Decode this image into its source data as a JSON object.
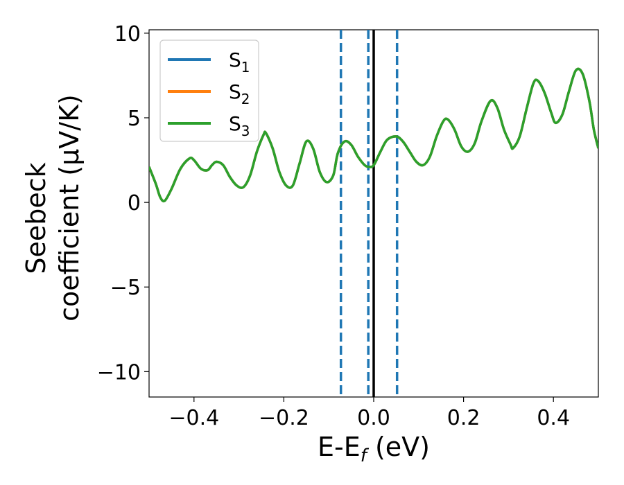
{
  "chart_data": {
    "type": "line",
    "xlabel": {
      "main": "E-E",
      "sub": "f",
      "tail": " (eV)"
    },
    "ylabel": {
      "line1": "Seebeck",
      "line2": "coefficient  (μV/K)"
    },
    "xlim": [
      -0.5,
      0.5
    ],
    "ylim": [
      -11.5,
      10.2
    ],
    "xticks": [
      -0.4,
      -0.2,
      0.0,
      0.2,
      0.4
    ],
    "xtick_labels": [
      "−0.4",
      "−0.2",
      "0.0",
      "0.2",
      "0.4"
    ],
    "yticks": [
      -10,
      -5,
      0,
      5,
      10
    ],
    "ytick_labels": [
      "−10",
      "−5",
      "0",
      "5",
      "10"
    ],
    "grid": false,
    "legend_position": "top-left",
    "series": [
      {
        "name": "S",
        "sub": "1",
        "color": "#1f77b4"
      },
      {
        "name": "S",
        "sub": "2",
        "color": "#ff7f0e"
      },
      {
        "name": "S",
        "sub": "3",
        "color": "#2ca02c"
      }
    ],
    "curve_points": {
      "x": [
        -0.5,
        -0.485,
        -0.475,
        -0.465,
        -0.45,
        -0.43,
        -0.41,
        -0.4,
        -0.385,
        -0.37,
        -0.36,
        -0.35,
        -0.335,
        -0.32,
        -0.305,
        -0.29,
        -0.275,
        -0.26,
        -0.245,
        -0.24,
        -0.225,
        -0.21,
        -0.195,
        -0.18,
        -0.165,
        -0.15,
        -0.135,
        -0.12,
        -0.105,
        -0.09,
        -0.08,
        -0.065,
        -0.05,
        -0.035,
        -0.02,
        -0.01,
        0.0,
        0.015,
        0.03,
        0.05,
        0.065,
        0.08,
        0.095,
        0.11,
        0.125,
        0.14,
        0.155,
        0.165,
        0.18,
        0.195,
        0.21,
        0.225,
        0.24,
        0.26,
        0.275,
        0.29,
        0.305,
        0.31,
        0.325,
        0.34,
        0.355,
        0.365,
        0.38,
        0.395,
        0.405,
        0.42,
        0.435,
        0.45,
        0.465,
        0.48,
        0.49,
        0.5
      ],
      "y": [
        2.1,
        1.1,
        0.3,
        0.1,
        0.8,
        2.0,
        2.6,
        2.5,
        2.0,
        1.9,
        2.2,
        2.4,
        2.2,
        1.5,
        1.0,
        0.9,
        1.6,
        3.0,
        4.0,
        4.1,
        3.2,
        1.8,
        1.0,
        1.0,
        2.3,
        3.6,
        3.2,
        1.8,
        1.2,
        1.6,
        2.9,
        3.6,
        3.4,
        2.7,
        2.2,
        2.1,
        2.2,
        3.0,
        3.7,
        3.9,
        3.6,
        3.0,
        2.4,
        2.2,
        2.7,
        3.9,
        4.8,
        4.9,
        4.3,
        3.3,
        3.0,
        3.5,
        4.8,
        6.0,
        5.6,
        4.3,
        3.4,
        3.2,
        3.9,
        5.5,
        7.0,
        7.2,
        6.5,
        5.3,
        4.7,
        5.2,
        6.6,
        7.8,
        7.6,
        6.0,
        4.3,
        3.2
      ]
    },
    "vertical_lines": [
      {
        "x": -0.073,
        "style": "dashed",
        "color": "#1f77b4"
      },
      {
        "x": -0.012,
        "style": "dashed",
        "color": "#1f77b4"
      },
      {
        "x": 0.052,
        "style": "dashed",
        "color": "#1f77b4"
      },
      {
        "x": 0.0,
        "style": "solid",
        "color": "#000000"
      }
    ]
  }
}
